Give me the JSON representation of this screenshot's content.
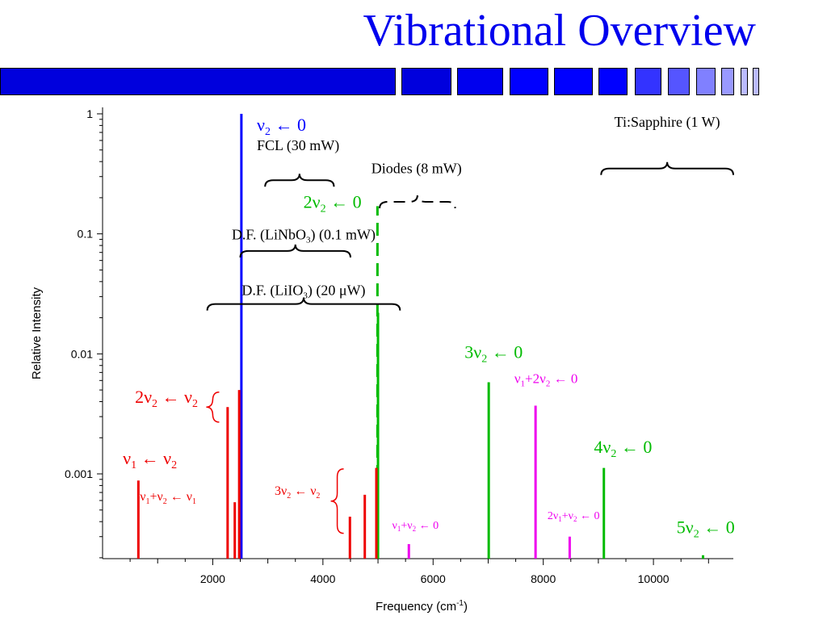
{
  "slide": {
    "title": "Vibrational Overview",
    "bar_colors": [
      "#0000dd",
      "#0000dd",
      "#0000ee",
      "#0000ff",
      "#0000ff",
      "#0000ff",
      "#3333ff",
      "#5555ff",
      "#8080ff",
      "#9999ff",
      "#bbbbff",
      "#bbbbff"
    ]
  },
  "colors": {
    "nu2_fundamental": "#0000ff",
    "overtone": "#00bb00",
    "hot_band": "#ee0000",
    "combination": "#ee00ee",
    "bracket": "#000000"
  },
  "chart_data": {
    "type": "stick-spectrum",
    "xlabel": "Frequency (cm",
    "xlabel_sup": "-1",
    "xlabel_end": ")",
    "ylabel": "Relative Intensity",
    "xlim": [
      0,
      11450
    ],
    "ylim": [
      0.00018,
      1
    ],
    "yscale": "log",
    "xticks": [
      2000,
      4000,
      6000,
      8000,
      10000
    ],
    "xtick_labels": [
      "2000",
      "4000",
      "6000",
      "8000",
      "10000"
    ],
    "yticks": [
      1,
      0.1,
      0.01,
      0.001
    ],
    "ytick_labels": [
      "1",
      "0.1",
      "0.01",
      "0.001"
    ],
    "grid": false,
    "series": [
      {
        "key": "nu2",
        "color": "#0000ff",
        "sticks": [
          {
            "x": 2520,
            "y": 1.0
          }
        ]
      },
      {
        "key": "overtones",
        "color": "#00bb00",
        "sticks": [
          {
            "x": 4990,
            "y": 0.17,
            "dashed": true
          },
          {
            "x": 5000,
            "y": 0.022
          },
          {
            "x": 7010,
            "y": 0.0058
          },
          {
            "x": 9100,
            "y": 0.00112
          },
          {
            "x": 10900,
            "y": 0.00021
          }
        ]
      },
      {
        "key": "hot_bands",
        "color": "#ee0000",
        "sticks": [
          {
            "x": 650,
            "y": 0.00088
          },
          {
            "x": 2270,
            "y": 0.0036
          },
          {
            "x": 2400,
            "y": 0.00058
          },
          {
            "x": 2480,
            "y": 0.005
          },
          {
            "x": 4490,
            "y": 0.00044
          },
          {
            "x": 4760,
            "y": 0.00067
          },
          {
            "x": 4970,
            "y": 0.00112
          }
        ]
      },
      {
        "key": "combinations",
        "color": "#ee00ee",
        "sticks": [
          {
            "x": 5560,
            "y": 0.00026
          },
          {
            "x": 7860,
            "y": 0.0037
          },
          {
            "x": 8480,
            "y": 0.0003
          }
        ]
      }
    ],
    "labels": [
      {
        "key": "nu2_fund",
        "color": "#0000ff",
        "size": 22,
        "x": 2800,
        "y": 0.72,
        "runs": [
          [
            "ν",
            "n"
          ],
          [
            "2",
            "sub"
          ],
          [
            " ← 0",
            "n"
          ]
        ]
      },
      {
        "key": "two_nu2",
        "color": "#00bb00",
        "size": 22,
        "x": 4700,
        "y": 0.165,
        "anchor": "end",
        "runs": [
          [
            "2ν",
            "n"
          ],
          [
            "2",
            "sub"
          ],
          [
            " ← 0",
            "n"
          ]
        ]
      },
      {
        "key": "three_nu2",
        "color": "#00bb00",
        "size": 22,
        "x": 7100,
        "y": 0.0092,
        "anchor": "middle",
        "runs": [
          [
            "3ν",
            "n"
          ],
          [
            "2",
            "sub"
          ],
          [
            " ← 0",
            "n"
          ]
        ]
      },
      {
        "key": "four_nu2",
        "color": "#00bb00",
        "size": 22,
        "x": 8920,
        "y": 0.0015,
        "runs": [
          [
            "4ν",
            "n"
          ],
          [
            "2",
            "sub"
          ],
          [
            " ← 0",
            "n"
          ]
        ]
      },
      {
        "key": "five_nu2",
        "color": "#00bb00",
        "size": 22,
        "x": 10420,
        "y": 0.00032,
        "runs": [
          [
            "5ν",
            "n"
          ],
          [
            "2",
            "sub"
          ],
          [
            " ← 0",
            "n"
          ]
        ]
      },
      {
        "key": "nu1_2nu2",
        "color": "#ee00ee",
        "size": 17,
        "x": 8050,
        "y": 0.0057,
        "anchor": "middle",
        "runs": [
          [
            "ν",
            "n"
          ],
          [
            "1",
            "sub"
          ],
          [
            "+2ν",
            "n"
          ],
          [
            "2",
            "sub"
          ],
          [
            " ← 0",
            "n"
          ]
        ]
      },
      {
        "key": "nu1_nu2",
        "color": "#ee00ee",
        "size": 14,
        "x": 6100,
        "y": 0.00035,
        "anchor": "end",
        "runs": [
          [
            "ν",
            "n"
          ],
          [
            "1",
            "sub"
          ],
          [
            "+ν",
            "n"
          ],
          [
            "2",
            "sub"
          ],
          [
            " ← 0",
            "n"
          ]
        ]
      },
      {
        "key": "two_nu1_nu2",
        "color": "#ee00ee",
        "size": 14,
        "x": 8550,
        "y": 0.00042,
        "anchor": "middle",
        "runs": [
          [
            "2ν",
            "n"
          ],
          [
            "1",
            "sub"
          ],
          [
            "+ν",
            "n"
          ],
          [
            "2",
            "sub"
          ],
          [
            " ← 0",
            "n"
          ]
        ]
      },
      {
        "key": "nu1_from_nu2",
        "color": "#ee0000",
        "size": 22,
        "x": 1350,
        "y": 0.0012,
        "anchor": "end",
        "runs": [
          [
            "ν",
            "n"
          ],
          [
            "1",
            "sub"
          ],
          [
            " ← ν",
            "n"
          ],
          [
            "2",
            "sub"
          ]
        ]
      },
      {
        "key": "two_nu2_from_nu2",
        "color": "#ee0000",
        "size": 22,
        "x": 1730,
        "y": 0.0039,
        "anchor": "end",
        "runs": [
          [
            "2ν",
            "n"
          ],
          [
            "2",
            "sub"
          ],
          [
            " ← ν",
            "n"
          ],
          [
            "2",
            "sub"
          ]
        ]
      },
      {
        "key": "three_nu2_from_nu2",
        "color": "#ee0000",
        "size": 16,
        "x": 3950,
        "y": 0.00067,
        "anchor": "end",
        "runs": [
          [
            "3ν",
            "n"
          ],
          [
            "2",
            "sub"
          ],
          [
            " ← ν",
            "n"
          ],
          [
            "2",
            "sub"
          ]
        ]
      },
      {
        "key": "nu1_nu2_from_nu1",
        "color": "#ee0000",
        "size": 16,
        "x": 1190,
        "y": 0.0006,
        "anchor": "middle",
        "runs": [
          [
            "ν",
            "n"
          ],
          [
            "1",
            "sub"
          ],
          [
            "+ν",
            "n"
          ],
          [
            "2",
            "sub"
          ],
          [
            " ← ν",
            "n"
          ],
          [
            "1",
            "sub"
          ]
        ]
      },
      {
        "key": "fcl",
        "color": "#000000",
        "size": 18,
        "x": 3550,
        "y": 0.5,
        "anchor": "middle",
        "runs": [
          [
            "FCL (30 mW)",
            "n"
          ]
        ]
      },
      {
        "key": "diodes",
        "color": "#000000",
        "size": 18,
        "x": 5700,
        "y": 0.32,
        "anchor": "middle",
        "runs": [
          [
            "Diodes (8 mW)",
            "n"
          ]
        ]
      },
      {
        "key": "ti_sapphire",
        "color": "#000000",
        "size": 18,
        "x": 10250,
        "y": 0.78,
        "anchor": "middle",
        "runs": [
          [
            "Ti:Sapphire (1 W)",
            "n"
          ]
        ]
      },
      {
        "key": "df_linbo3",
        "color": "#000000",
        "size": 18,
        "x": 3650,
        "y": 0.09,
        "anchor": "middle",
        "runs": [
          [
            "D.F. (LiNbO",
            "n"
          ],
          [
            "3",
            "sub"
          ],
          [
            ") (0.1 mW)",
            "n"
          ]
        ]
      },
      {
        "key": "df_liio3",
        "color": "#000000",
        "size": 18,
        "x": 3650,
        "y": 0.031,
        "anchor": "middle",
        "runs": [
          [
            "D.F. (LiIO",
            "n"
          ],
          [
            "3",
            "sub"
          ],
          [
            ") (20 μW)",
            "n"
          ]
        ]
      }
    ],
    "ranges": [
      {
        "key": "fcl",
        "x1": 2950,
        "x2": 4200,
        "y": 0.28,
        "dashed": false
      },
      {
        "key": "diodes",
        "x1": 5030,
        "x2": 6400,
        "y": 0.185,
        "dashed": true
      },
      {
        "key": "ti_sapphire",
        "x1": 9050,
        "x2": 11450,
        "y": 0.35,
        "dashed": false
      },
      {
        "key": "df_linbo3",
        "x1": 2500,
        "x2": 4500,
        "y": 0.072,
        "dashed": false
      },
      {
        "key": "df_liio3",
        "x1": 1900,
        "x2": 5400,
        "y": 0.026,
        "dashed": false
      }
    ],
    "group_braces": [
      {
        "key": "two_nu2_from_nu2",
        "x": 2000,
        "y_top": 0.0048,
        "y_bot": 0.0027
      },
      {
        "key": "three_nu2_from_nu2",
        "x": 4260,
        "y_top": 0.0011,
        "y_bot": 0.00032
      }
    ]
  }
}
